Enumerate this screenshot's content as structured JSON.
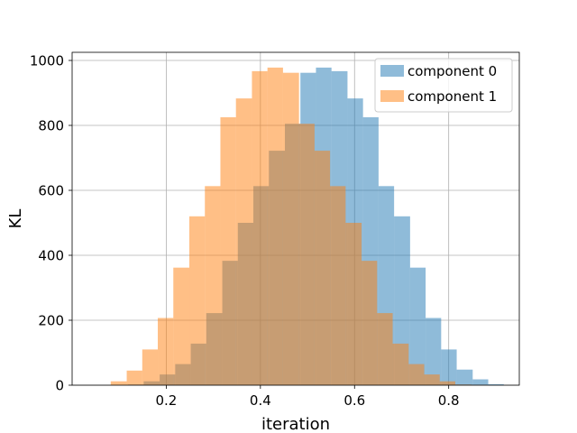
{
  "chart_data": {
    "type": "histogram",
    "title": "",
    "xlabel": "iteration",
    "ylabel": "KL",
    "xlim": [
      0.0,
      0.95
    ],
    "ylim": [
      0,
      1025
    ],
    "xticks": [
      0.2,
      0.4,
      0.6,
      0.8
    ],
    "xtick_labels": [
      "0.2",
      "0.4",
      "0.6",
      "0.8"
    ],
    "yticks": [
      0,
      200,
      400,
      600,
      800,
      1000
    ],
    "ytick_labels": [
      "0",
      "200",
      "400",
      "600",
      "800",
      "1000"
    ],
    "grid": true,
    "legend_position": "top-right",
    "series": [
      {
        "name": "component 0",
        "color": "#1f77b4",
        "alpha": 0.5,
        "bin_edges": [
          0.119,
          0.152,
          0.186,
          0.219,
          0.252,
          0.285,
          0.319,
          0.352,
          0.385,
          0.418,
          0.452,
          0.485,
          0.518,
          0.551,
          0.585,
          0.618,
          0.651,
          0.684,
          0.718,
          0.751,
          0.784,
          0.817,
          0.851,
          0.884,
          0.917
        ],
        "counts": [
          2,
          12,
          33,
          65,
          128,
          222,
          383,
          500,
          613,
          722,
          805,
          962,
          978,
          967,
          883,
          825,
          613,
          520,
          362,
          207,
          110,
          48,
          18,
          3
        ]
      },
      {
        "name": "component 1",
        "color": "#ff7f0e",
        "alpha": 0.5,
        "bin_edges": [
          0.082,
          0.116,
          0.149,
          0.182,
          0.215,
          0.249,
          0.282,
          0.315,
          0.348,
          0.382,
          0.415,
          0.448,
          0.482,
          0.515,
          0.548,
          0.581,
          0.615,
          0.648,
          0.681,
          0.715,
          0.748,
          0.781,
          0.814,
          0.848,
          0.881
        ],
        "counts": [
          12,
          45,
          110,
          207,
          362,
          520,
          613,
          825,
          883,
          967,
          978,
          962,
          805,
          722,
          613,
          500,
          383,
          222,
          128,
          65,
          33,
          12,
          2,
          1
        ]
      }
    ]
  }
}
